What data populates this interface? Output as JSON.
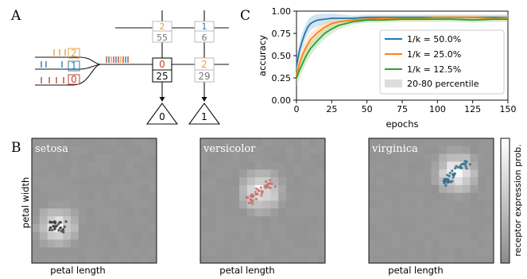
{
  "panels": {
    "a": "A",
    "b": "B",
    "c": "C"
  },
  "panel_a": {
    "input_groups": [
      {
        "label": "2",
        "color": "#e8a23c"
      },
      {
        "label": "1",
        "color": "#2f77b4"
      },
      {
        "label": "0",
        "color": "#c4452f"
      }
    ],
    "nodes": [
      {
        "top": "2",
        "bottom": "55",
        "top_color": "#e8a23c",
        "bottom_color": "#777777"
      },
      {
        "top": "1",
        "bottom": "6",
        "top_color": "#2f77b4",
        "bottom_color": "#777777"
      },
      {
        "top": "0",
        "bottom": "25",
        "top_color": "#c4452f",
        "bottom_color": "#111111"
      },
      {
        "top": "2",
        "bottom": "29",
        "top_color": "#e8a23c",
        "bottom_color": "#777777"
      }
    ],
    "outputs": [
      "0",
      "1"
    ]
  },
  "panel_b": {
    "panels": [
      {
        "title": "setosa",
        "dot_color": "#404040"
      },
      {
        "title": "versicolor",
        "dot_color": "#c4706a"
      },
      {
        "title": "virginica",
        "dot_color": "#2f6e8e"
      }
    ],
    "xlabel": "petal length",
    "ylabel": "petal width",
    "colorbar_label": "receptor expression prob."
  },
  "chart_data": {
    "type": "line",
    "x_ticks": [
      "0",
      "25",
      "50",
      "75",
      "100",
      "125",
      "150"
    ],
    "y_ticks": [
      "0.00",
      "0.25",
      "0.50",
      "0.75",
      "1.00"
    ],
    "xlabel": "epochs",
    "ylabel": "accuracy",
    "xlim": [
      0,
      150
    ],
    "ylim": [
      0,
      1
    ],
    "legend_position": "right",
    "band_label": "20-80 percentile",
    "series": [
      {
        "name": "1/k = 50.0%",
        "color": "#1f77b4",
        "x": [
          0,
          2,
          4,
          6,
          8,
          10,
          12,
          15,
          20,
          25,
          30,
          40,
          50,
          60,
          75,
          90,
          100,
          110,
          125,
          140,
          150
        ],
        "y": [
          0.38,
          0.55,
          0.66,
          0.75,
          0.82,
          0.86,
          0.88,
          0.9,
          0.91,
          0.92,
          0.92,
          0.92,
          0.93,
          0.93,
          0.93,
          0.93,
          0.93,
          0.93,
          0.93,
          0.93,
          0.93
        ]
      },
      {
        "name": "1/k = 25.0%",
        "color": "#ff7f0e",
        "x": [
          0,
          2,
          4,
          6,
          8,
          10,
          15,
          20,
          25,
          30,
          40,
          50,
          60,
          75,
          90,
          100,
          110,
          125,
          140,
          150
        ],
        "y": [
          0.28,
          0.4,
          0.5,
          0.57,
          0.63,
          0.68,
          0.76,
          0.82,
          0.86,
          0.88,
          0.9,
          0.91,
          0.92,
          0.92,
          0.92,
          0.93,
          0.93,
          0.93,
          0.92,
          0.93
        ]
      },
      {
        "name": "1/k = 12.5%",
        "color": "#2ca02c",
        "x": [
          0,
          2,
          4,
          6,
          8,
          10,
          15,
          20,
          25,
          30,
          40,
          50,
          60,
          75,
          90,
          100,
          110,
          125,
          140,
          150
        ],
        "y": [
          0.25,
          0.33,
          0.4,
          0.47,
          0.53,
          0.58,
          0.67,
          0.75,
          0.8,
          0.84,
          0.88,
          0.9,
          0.9,
          0.91,
          0.91,
          0.91,
          0.91,
          0.9,
          0.91,
          0.91
        ]
      }
    ]
  }
}
